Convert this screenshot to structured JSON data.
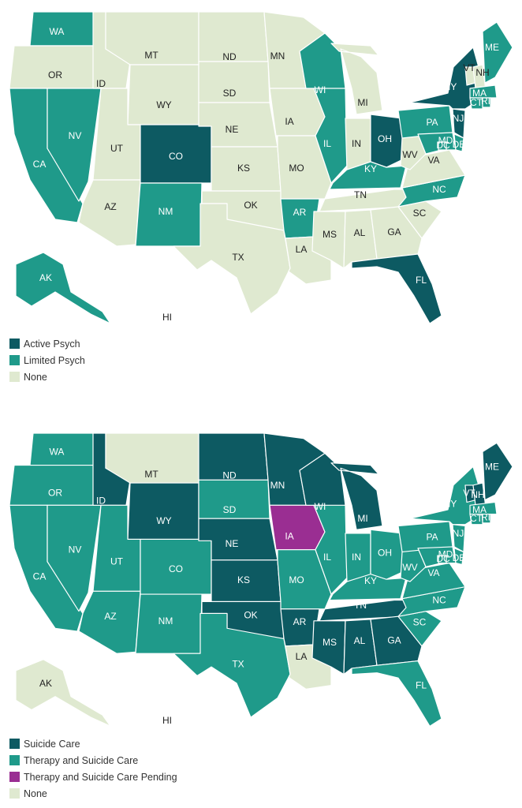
{
  "colors": {
    "active_psych": "#0d5a62",
    "limited_psych": "#1f9a8a",
    "suicide_care": "#0d5a62",
    "therapy_and_suicide_care": "#1f9a8a",
    "therapy_pending": "#9a2e92",
    "none": "#dfe9d0"
  },
  "maps": [
    {
      "legend": [
        {
          "key": "active",
          "label": "Active Psych",
          "color": "#0d5a62"
        },
        {
          "key": "limited",
          "label": "Limited Psych",
          "color": "#1f9a8a"
        },
        {
          "key": "none",
          "label": "None",
          "color": "#dfe9d0"
        }
      ],
      "states": {
        "WA": "limited",
        "OR": "none",
        "CA": "limited",
        "NV": "limited",
        "ID": "none",
        "MT": "none",
        "WY": "none",
        "UT": "none",
        "AZ": "none",
        "CO": "active",
        "NM": "limited",
        "ND": "none",
        "SD": "none",
        "NE": "none",
        "KS": "none",
        "OK": "none",
        "TX": "none",
        "MN": "none",
        "IA": "none",
        "MO": "none",
        "AR": "limited",
        "LA": "none",
        "WI": "limited",
        "IL": "limited",
        "MI": "none",
        "IN": "none",
        "OH": "active",
        "KY": "limited",
        "TN": "none",
        "MS": "none",
        "AL": "none",
        "GA": "none",
        "FL": "active",
        "SC": "none",
        "NC": "limited",
        "VA": "none",
        "WV": "none",
        "PA": "limited",
        "NY": "active",
        "NJ": "active",
        "DE": "limited",
        "MD": "limited",
        "DC": "limited",
        "VT": "none",
        "NH": "none",
        "ME": "limited",
        "MA": "limited",
        "CT": "limited",
        "RI": "limited",
        "AK": "limited",
        "HI": "none"
      }
    },
    {
      "legend": [
        {
          "key": "suicide",
          "label": "Suicide Care",
          "color": "#0d5a62"
        },
        {
          "key": "therapy",
          "label": "Therapy and Suicide Care",
          "color": "#1f9a8a"
        },
        {
          "key": "pending",
          "label": "Therapy and Suicide Care Pending",
          "color": "#9a2e92"
        },
        {
          "key": "none",
          "label": "None",
          "color": "#dfe9d0"
        }
      ],
      "states": {
        "WA": "therapy",
        "OR": "therapy",
        "CA": "therapy",
        "NV": "therapy",
        "ID": "suicide",
        "MT": "none",
        "WY": "suicide",
        "UT": "therapy",
        "AZ": "therapy",
        "CO": "therapy",
        "NM": "therapy",
        "ND": "suicide",
        "SD": "therapy",
        "NE": "suicide",
        "KS": "suicide",
        "OK": "suicide",
        "TX": "therapy",
        "MN": "suicide",
        "IA": "pending",
        "MO": "therapy",
        "AR": "suicide",
        "LA": "none",
        "WI": "suicide",
        "IL": "therapy",
        "MI": "suicide",
        "IN": "therapy",
        "OH": "therapy",
        "KY": "therapy",
        "TN": "suicide",
        "MS": "suicide",
        "AL": "suicide",
        "GA": "suicide",
        "FL": "therapy",
        "SC": "therapy",
        "NC": "therapy",
        "VA": "therapy",
        "WV": "therapy",
        "PA": "therapy",
        "NY": "therapy",
        "NJ": "therapy",
        "DE": "therapy",
        "MD": "therapy",
        "DC": "therapy",
        "VT": "suicide",
        "NH": "suicide",
        "ME": "suicide",
        "MA": "therapy",
        "CT": "therapy",
        "RI": "therapy",
        "AK": "none",
        "HI": "none"
      }
    }
  ]
}
